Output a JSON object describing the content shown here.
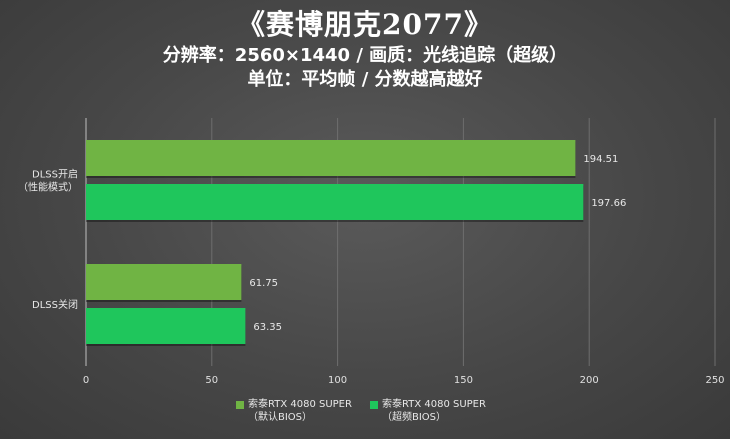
{
  "header": {
    "title": "《赛博朋克2077》",
    "line2": "分辨率：2560×1440 / 画质：光线追踪（超级）",
    "line3": "单位：平均帧 / 分数越高越好"
  },
  "chart_data": {
    "type": "bar",
    "orientation": "horizontal",
    "categories": [
      "DLSS开启（性能模式）",
      "DLSS关闭"
    ],
    "category_lines": [
      [
        "DLSS开启",
        "（性能模式）"
      ],
      [
        "DLSS关闭"
      ]
    ],
    "series": [
      {
        "name": "索泰RTX 4080 SUPER（默认BIOS）",
        "values": [
          194.51,
          61.75
        ],
        "labels": [
          "194.51",
          "61.75"
        ],
        "color": "#70b444"
      },
      {
        "name": "索泰RTX 4080 SUPER（超频BIOS）",
        "values": [
          197.66,
          63.35
        ],
        "labels": [
          "197.66",
          "63.35"
        ],
        "color": "#1fc65c"
      }
    ],
    "xlim": [
      0,
      250
    ],
    "xticks": [
      0,
      50,
      100,
      150,
      200,
      250
    ],
    "xtick_labels": [
      "0",
      "50",
      "100",
      "150",
      "200",
      "250"
    ],
    "grid": true,
    "legend_position": "bottom"
  }
}
